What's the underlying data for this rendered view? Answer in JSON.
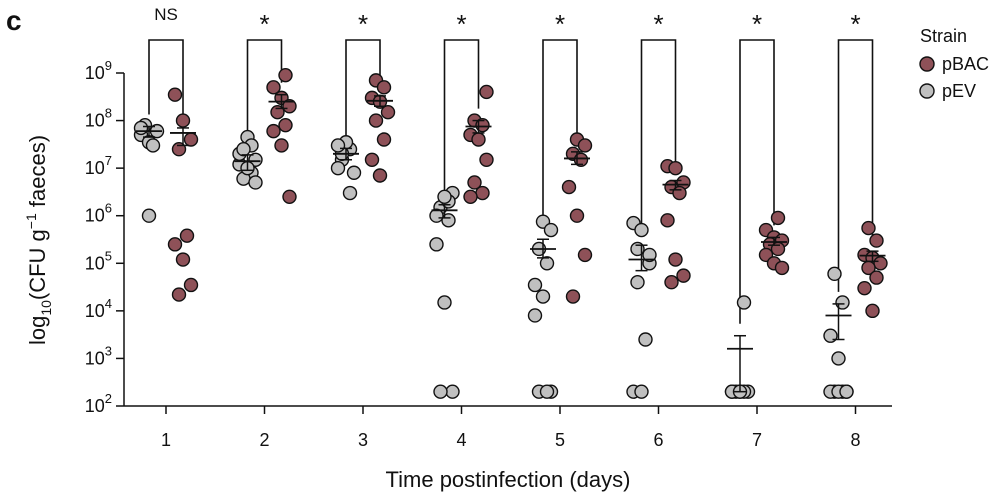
{
  "panel_label": "c",
  "chart_data": {
    "type": "scatter",
    "title": "",
    "xlabel": "Time postinfection (days)",
    "ylabel": {
      "prefix": "log",
      "sub": "10",
      "mid": "(CFU g",
      "sup": "−1",
      "suffix": " faeces)"
    },
    "categories": [
      "1",
      "2",
      "3",
      "4",
      "5",
      "6",
      "7",
      "8"
    ],
    "y_scale": "log",
    "ylim": [
      100,
      1000000000
    ],
    "y_ticks": [
      {
        "value": 100,
        "base": "10",
        "exp": "2"
      },
      {
        "value": 1000,
        "base": "10",
        "exp": "3"
      },
      {
        "value": 10000,
        "base": "10",
        "exp": "4"
      },
      {
        "value": 100000,
        "base": "10",
        "exp": "5"
      },
      {
        "value": 1000000,
        "base": "10",
        "exp": "6"
      },
      {
        "value": 10000000,
        "base": "10",
        "exp": "7"
      },
      {
        "value": 100000000,
        "base": "10",
        "exp": "8"
      },
      {
        "value": 1000000000,
        "base": "10",
        "exp": "9"
      }
    ],
    "legend": {
      "title": "Strain",
      "position": "top-right"
    },
    "series": [
      {
        "name": "pEV",
        "color": "#c0c0c0",
        "points": [
          [
            50000000,
            35000000,
            60000000,
            80000000,
            30000000,
            70000000,
            1000000
          ],
          [
            8000000,
            12000000,
            45000000,
            15000000,
            6000000,
            30000000,
            20000000,
            10000000,
            5000000,
            25000000
          ],
          [
            15000000,
            25000000,
            10000000,
            35000000,
            8000000,
            20000000,
            3000000,
            30000000
          ],
          [
            3000000,
            1500000,
            800000,
            250000,
            15000,
            200,
            200,
            2000000,
            1000000,
            2500000
          ],
          [
            750000,
            500000,
            200000,
            100000,
            35000,
            20000,
            200,
            200,
            200,
            8000
          ],
          [
            700000,
            500000,
            100000,
            40000,
            2500,
            200,
            200,
            150000,
            200000
          ],
          [
            15000,
            200,
            200,
            200,
            200,
            200,
            200,
            200
          ],
          [
            60000,
            15000,
            3000,
            1000,
            200,
            200,
            200,
            200,
            200,
            200
          ]
        ],
        "means": [
          60000000,
          14000000,
          20000000,
          1300000,
          200000,
          120000,
          1600,
          8000
        ],
        "sems": [
          [
            45000000,
            75000000
          ],
          [
            9000000,
            19000000
          ],
          [
            15000000,
            26000000
          ],
          [
            900000,
            1700000
          ],
          [
            130000,
            320000
          ],
          [
            70000,
            240000
          ],
          [
            200,
            3000
          ],
          [
            2500,
            14000
          ]
        ]
      },
      {
        "name": "pBAC",
        "color": "#8e5158",
        "points": [
          [
            350000000,
            100000000,
            40000000,
            25000000,
            380000,
            250000,
            120000,
            35000,
            22000
          ],
          [
            900000000,
            500000000,
            300000000,
            200000000,
            150000000,
            80000000,
            60000000,
            30000000,
            2500000
          ],
          [
            700000000,
            500000000,
            300000000,
            250000000,
            150000000,
            100000000,
            40000000,
            15000000,
            7000000
          ],
          [
            400000000,
            100000000,
            80000000,
            50000000,
            40000000,
            15000000,
            5000000,
            3000000,
            2500000
          ],
          [
            40000000,
            30000000,
            20000000,
            15000000,
            4000000,
            1000000,
            150000,
            20000
          ],
          [
            11000000,
            10000000,
            5000000,
            4000000,
            3000000,
            800000,
            120000,
            55000,
            40000
          ],
          [
            900000,
            500000,
            350000,
            300000,
            250000,
            200000,
            150000,
            100000,
            80000
          ],
          [
            550000,
            300000,
            150000,
            130000,
            100000,
            80000,
            50000,
            30000,
            10000
          ]
        ],
        "means": [
          55000000,
          250000000,
          260000000,
          75000000,
          16000000,
          4500000,
          280000,
          145000
        ],
        "sems": [
          [
            30000000,
            70000000
          ],
          [
            180000000,
            350000000
          ],
          [
            200000000,
            330000000
          ],
          [
            55000000,
            100000000
          ],
          [
            12000000,
            22000000
          ],
          [
            3500000,
            5500000
          ],
          [
            240000,
            350000
          ],
          [
            110000,
            180000
          ]
        ]
      }
    ],
    "significance": [
      "NS",
      "*",
      "*",
      "*",
      "*",
      "*",
      "*",
      "*"
    ]
  }
}
